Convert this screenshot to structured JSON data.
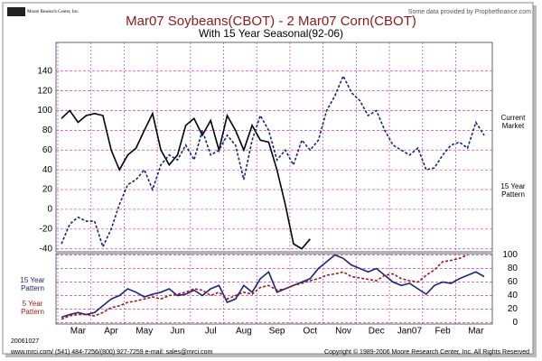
{
  "header": {
    "logo": "Moore Research Center, Inc.",
    "credit": "Some data provided by Prophetfinance.com"
  },
  "chart_data": [
    {
      "type": "line",
      "title": "Mar07 Soybeans(CBOT) - 2 Mar07 Corn(CBOT)",
      "subtitle": "With 15 Year Seasonal(92-06)",
      "ylim": [
        -43,
        169
      ],
      "yticks": [
        -40,
        -20,
        0,
        20,
        40,
        60,
        80,
        100,
        120,
        140
      ],
      "yaxis_side": "left",
      "grid": true,
      "series": [
        {
          "name": "Current Market",
          "color": "#000000",
          "style": "solid",
          "values": [
            92,
            100,
            88,
            95,
            97,
            95,
            60,
            40,
            55,
            62,
            80,
            97,
            60,
            45,
            55,
            85,
            92,
            75,
            90,
            60,
            95,
            80,
            60,
            85,
            70,
            68,
            40,
            5,
            -35,
            -40,
            -30,
            null,
            null,
            null,
            null,
            null,
            null,
            null,
            null,
            null,
            null,
            null,
            null,
            null,
            null,
            null,
            null,
            null,
            null,
            null,
            null,
            null
          ]
        },
        {
          "name": "15 Year Pattern",
          "color": "#1a237e",
          "style": "dashed",
          "values": [
            -35,
            -15,
            -8,
            -12,
            -12,
            -38,
            -20,
            5,
            25,
            30,
            40,
            20,
            45,
            55,
            50,
            65,
            50,
            80,
            55,
            60,
            75,
            65,
            30,
            70,
            95,
            80,
            50,
            60,
            45,
            70,
            60,
            70,
            100,
            115,
            135,
            118,
            110,
            95,
            100,
            80,
            65,
            60,
            55,
            62,
            40,
            42,
            55,
            65,
            68,
            62,
            88,
            75
          ]
        }
      ]
    },
    {
      "type": "line",
      "categories": [
        null,
        null,
        "Mar",
        null,
        null,
        null,
        "Apr",
        null,
        null,
        null,
        "May",
        null,
        null,
        null,
        "Jun",
        null,
        null,
        null,
        "Jul",
        null,
        null,
        null,
        "Aug",
        null,
        null,
        null,
        "Sep",
        null,
        null,
        null,
        "Oct",
        null,
        null,
        null,
        "Nov",
        null,
        null,
        null,
        "Dec",
        null,
        null,
        null,
        "Jan07",
        null,
        null,
        null,
        "Feb",
        null,
        null,
        null,
        "Mar",
        null
      ],
      "ylim": [
        -2,
        102
      ],
      "yticks": [
        0,
        20,
        40,
        60,
        80,
        100
      ],
      "yaxis_side": "right",
      "grid": true,
      "series": [
        {
          "name": "15 Year Pattern",
          "color": "#1a237e",
          "style": "solid",
          "values": [
            8,
            12,
            15,
            12,
            15,
            25,
            35,
            40,
            50,
            45,
            38,
            42,
            45,
            50,
            40,
            42,
            48,
            40,
            50,
            55,
            30,
            35,
            55,
            45,
            65,
            75,
            45,
            50,
            55,
            60,
            65,
            80,
            90,
            100,
            95,
            85,
            80,
            75,
            80,
            70,
            60,
            55,
            58,
            50,
            42,
            55,
            60,
            58,
            65,
            70,
            75,
            68
          ]
        },
        {
          "name": "5 Year Pattern",
          "color": "#a01818",
          "style": "dashed",
          "values": [
            5,
            10,
            12,
            12,
            10,
            15,
            22,
            25,
            30,
            32,
            35,
            38,
            35,
            40,
            42,
            45,
            50,
            48,
            40,
            45,
            35,
            40,
            45,
            42,
            52,
            55,
            48,
            50,
            55,
            58,
            62,
            65,
            70,
            72,
            75,
            68,
            66,
            64,
            62,
            70,
            72,
            65,
            62,
            60,
            70,
            78,
            90,
            92,
            95,
            100,
            null,
            null
          ]
        }
      ]
    }
  ],
  "footer": {
    "date": "20061027",
    "contact": "www.mrci.com/   (541) 484-7256/(800) 927-7259   e-mail: sales@mrci.com",
    "copyright": "Copyright © 1989-2006 Moore Research Center, Inc. All Rights Reserved"
  }
}
